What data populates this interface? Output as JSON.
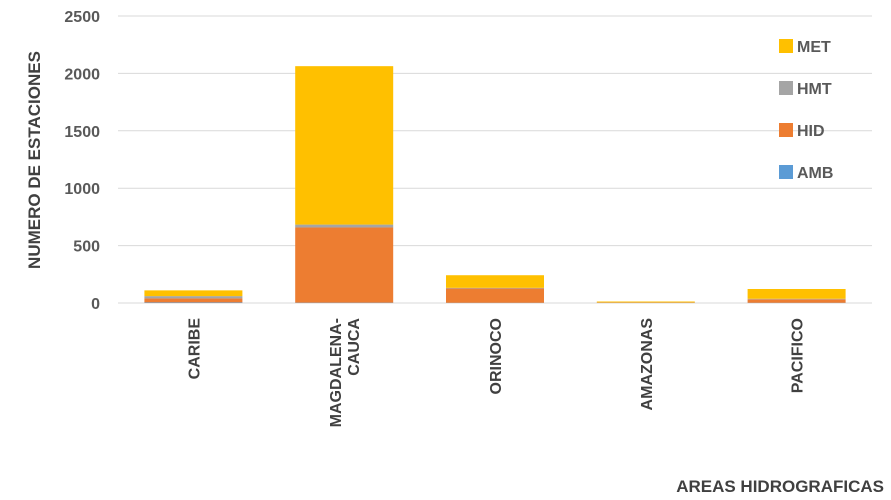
{
  "chart_data": {
    "type": "bar",
    "stacked": true,
    "title": "",
    "xlabel": "AREAS HIDROGRAFICAS",
    "ylabel": "NUMERO DE ESTACIONES",
    "ylim": [
      0,
      2500
    ],
    "yticks": [
      "0",
      "500",
      "1000",
      "1500",
      "2000",
      "2500"
    ],
    "grid": true,
    "legend_position": "right",
    "categories": [
      [
        "CARIBE"
      ],
      [
        "MAGDALENA-",
        "CAUCA"
      ],
      [
        "ORINOCO"
      ],
      [
        "AMAZONAS"
      ],
      [
        "PACIFICO"
      ]
    ],
    "series": [
      {
        "name": "AMB",
        "color": "#5B9BD5",
        "values": [
          5,
          3,
          2,
          0,
          2
        ]
      },
      {
        "name": "HID",
        "color": "#ED7D31",
        "values": [
          35,
          655,
          125,
          3,
          30
        ]
      },
      {
        "name": "HMT",
        "color": "#A5A5A5",
        "values": [
          20,
          25,
          5,
          2,
          5
        ]
      },
      {
        "name": "MET",
        "color": "#FFC000",
        "values": [
          50,
          1380,
          110,
          8,
          85
        ]
      }
    ]
  }
}
